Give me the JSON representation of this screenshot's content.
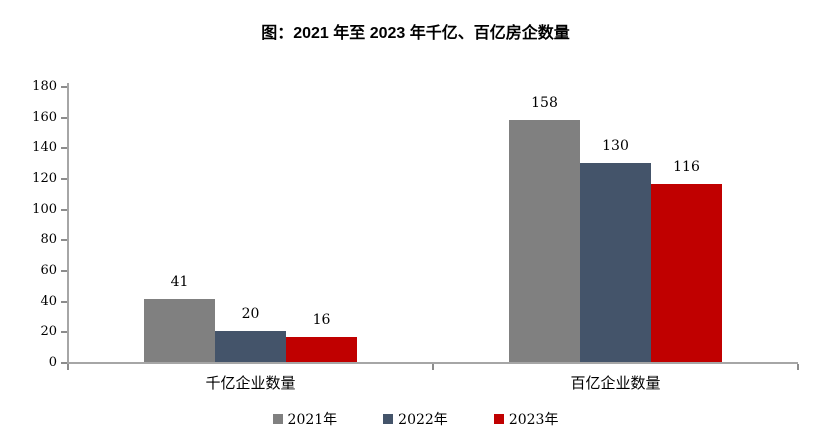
{
  "chart_data": {
    "type": "bar",
    "title": "图：2021 年至 2023 年千亿、百亿房企数量",
    "categories": [
      "千亿企业数量",
      "百亿企业数量"
    ],
    "series": [
      {
        "name": "2021年",
        "color": "#808080",
        "values": [
          41,
          158
        ]
      },
      {
        "name": "2022年",
        "color": "#44546A",
        "values": [
          20,
          130
        ]
      },
      {
        "name": "2023年",
        "color": "#C00000",
        "values": [
          16,
          116
        ]
      }
    ],
    "ylim": [
      0,
      180
    ],
    "ytick_step": 20,
    "grid": false,
    "value_labels": true,
    "legend_position": "bottom",
    "axis_color": "#a6a6a6"
  }
}
